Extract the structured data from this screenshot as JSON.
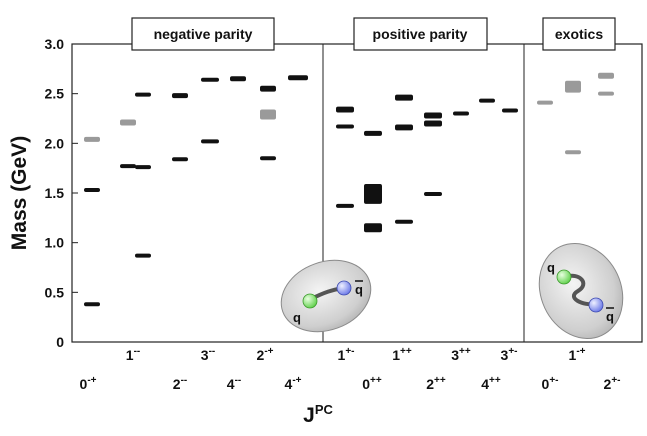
{
  "chart_data": {
    "type": "scatter",
    "ylabel": "Mass (GeV)",
    "xlabel": "J",
    "xlabel_sup": "PC",
    "ylim": [
      0,
      3.0
    ],
    "yticks": [
      "0",
      "0.5",
      "1.0",
      "1.5",
      "2.0",
      "2.5",
      "3.0"
    ],
    "panels": [
      {
        "title": "negative parity"
      },
      {
        "title": "positive parity"
      },
      {
        "title": "exotics"
      }
    ],
    "categories": [
      {
        "j": "0",
        "pc": "-+",
        "row": "lower"
      },
      {
        "j": "1",
        "pc": "--",
        "row": "upper"
      },
      {
        "j": "2",
        "pc": "--",
        "row": "lower"
      },
      {
        "j": "3",
        "pc": "--",
        "row": "upper"
      },
      {
        "j": "4",
        "pc": "--",
        "row": "lower"
      },
      {
        "j": "2",
        "pc": "-+",
        "row": "upper"
      },
      {
        "j": "4",
        "pc": "-+",
        "row": "lower"
      },
      {
        "j": "1",
        "pc": "+-",
        "row": "upper"
      },
      {
        "j": "0",
        "pc": "++",
        "row": "lower"
      },
      {
        "j": "1",
        "pc": "++",
        "row": "upper"
      },
      {
        "j": "2",
        "pc": "++",
        "row": "lower"
      },
      {
        "j": "3",
        "pc": "++",
        "row": "upper"
      },
      {
        "j": "4",
        "pc": "++",
        "row": "lower"
      },
      {
        "j": "3",
        "pc": "+-",
        "row": "upper"
      },
      {
        "j": "0",
        "pc": "+-",
        "row": "lower"
      },
      {
        "j": "1",
        "pc": "-+",
        "row": "upper"
      },
      {
        "j": "2",
        "pc": "+-",
        "row": "lower"
      }
    ],
    "series": [
      {
        "style": "black",
        "color": "#111111",
        "points": [
          {
            "x": 0,
            "y": 1.53,
            "h": 0.02
          },
          {
            "x": 0,
            "y": 0.38,
            "h": 0.02
          },
          {
            "x": 1,
            "y": 1.77,
            "h": 0.02
          },
          {
            "x": 2,
            "y": 1.76,
            "h": 0.02
          },
          {
            "x": 2,
            "y": 2.49,
            "h": 0.04
          },
          {
            "x": 2,
            "y": 0.87,
            "h": 0.02
          },
          {
            "x": 3,
            "y": 2.48,
            "h": 0.05
          },
          {
            "x": 3,
            "y": 1.84,
            "h": 0.02
          },
          {
            "x": 4,
            "y": 2.64,
            "h": 0.02
          },
          {
            "x": 4,
            "y": 2.02,
            "h": 0.02
          },
          {
            "x": 5,
            "y": 2.65,
            "h": 0.05
          },
          {
            "x": 6,
            "y": 2.55,
            "h": 0.06
          },
          {
            "x": 6,
            "y": 1.85,
            "h": 0.02
          },
          {
            "x": 7,
            "y": 2.66,
            "h": 0.05
          },
          {
            "x": 8,
            "y": 2.34,
            "h": 0.06
          },
          {
            "x": 8,
            "y": 2.17,
            "h": 0.02
          },
          {
            "x": 8,
            "y": 1.37,
            "h": 0.03
          },
          {
            "x": 9,
            "y": 2.1,
            "h": 0.05
          },
          {
            "x": 9,
            "y": 1.49,
            "h": 0.2
          },
          {
            "x": 9,
            "y": 1.15,
            "h": 0.09
          },
          {
            "x": 10,
            "y": 2.46,
            "h": 0.06
          },
          {
            "x": 10,
            "y": 2.16,
            "h": 0.06
          },
          {
            "x": 10,
            "y": 1.21,
            "h": 0.04
          },
          {
            "x": 11,
            "y": 2.28,
            "h": 0.06
          },
          {
            "x": 11,
            "y": 2.2,
            "h": 0.06
          },
          {
            "x": 11,
            "y": 1.49,
            "h": 0.02
          },
          {
            "x": 12,
            "y": 2.3,
            "h": 0.04
          },
          {
            "x": 13,
            "y": 2.43,
            "h": 0.04
          },
          {
            "x": 14,
            "y": 2.33,
            "h": 0.04
          }
        ]
      },
      {
        "style": "gray",
        "color": "#9a9a9a",
        "points": [
          {
            "x": 0,
            "y": 2.04,
            "h": 0.05
          },
          {
            "x": 1,
            "y": 2.21,
            "h": 0.06
          },
          {
            "x": 6,
            "y": 2.29,
            "h": 0.1
          },
          {
            "x": 15,
            "y": 2.41,
            "h": 0.04
          },
          {
            "x": 16,
            "y": 1.91,
            "h": 0.04
          },
          {
            "x": 16,
            "y": 2.57,
            "h": 0.12
          },
          {
            "x": 17,
            "y": 2.68,
            "h": 0.06
          },
          {
            "x": 17,
            "y": 2.5,
            "h": 0.04
          }
        ]
      }
    ],
    "grid": false,
    "legend": "none"
  },
  "insets": {
    "meson": {
      "quark": "q",
      "antiquark": "q"
    },
    "hybrid": {
      "quark": "q",
      "antiquark": "q"
    }
  },
  "colors": {
    "quark": "#7fe06a",
    "antiquark": "#7f8ff0",
    "ellipse": "#c9c9c9"
  }
}
